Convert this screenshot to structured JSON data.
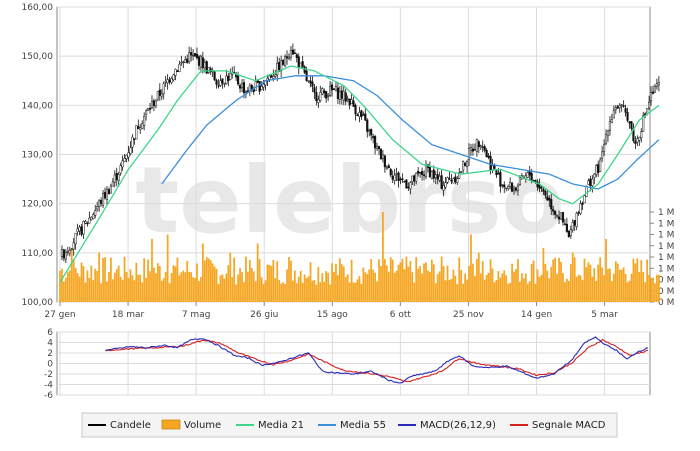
{
  "chart_data": [
    {
      "type": "candlestick",
      "panel": "price",
      "watermark": "telebrso",
      "y_ticks": [
        "160,00",
        "150,00",
        "140,00",
        "130,00",
        "120,00",
        "110,00",
        "100,00"
      ],
      "y_tick_values": [
        160,
        150,
        140,
        130,
        120,
        110,
        100
      ],
      "ylim": [
        100,
        160
      ],
      "volume_ticks": [
        "1 M",
        "1 M",
        "1 M",
        "1 M",
        "1 M",
        "1 M",
        "0 M",
        "0 M",
        "0 M"
      ],
      "x_ticks": [
        "27 gen",
        "18 mar",
        "7 mag",
        "26 giu",
        "15 ago",
        "6 ott",
        "25 nov",
        "14 gen",
        "5 mar"
      ],
      "x_tick_positions": [
        0,
        35,
        70,
        105,
        140,
        175,
        210,
        245,
        280
      ],
      "n_days": 296,
      "price_anchors": [
        [
          0,
          109
        ],
        [
          6,
          112
        ],
        [
          15,
          117
        ],
        [
          25,
          123
        ],
        [
          32,
          128
        ],
        [
          40,
          136
        ],
        [
          45,
          139
        ],
        [
          52,
          143
        ],
        [
          58,
          147
        ],
        [
          66,
          150
        ],
        [
          72,
          149
        ],
        [
          80,
          145
        ],
        [
          88,
          146
        ],
        [
          95,
          143
        ],
        [
          102,
          144
        ],
        [
          110,
          147
        ],
        [
          115,
          149
        ],
        [
          118,
          152
        ],
        [
          125,
          146
        ],
        [
          130,
          142
        ],
        [
          140,
          143
        ],
        [
          148,
          141
        ],
        [
          155,
          137
        ],
        [
          162,
          131
        ],
        [
          170,
          126
        ],
        [
          178,
          124
        ],
        [
          188,
          127
        ],
        [
          195,
          124
        ],
        [
          204,
          126
        ],
        [
          210,
          131
        ],
        [
          215,
          133
        ],
        [
          220,
          128
        ],
        [
          226,
          124
        ],
        [
          232,
          123
        ],
        [
          240,
          126
        ],
        [
          248,
          122
        ],
        [
          252,
          119
        ],
        [
          256,
          117
        ],
        [
          260,
          113
        ],
        [
          264,
          118
        ],
        [
          270,
          124
        ],
        [
          276,
          128
        ],
        [
          280,
          136
        ],
        [
          284,
          140
        ],
        [
          290,
          138
        ],
        [
          294,
          132
        ],
        [
          298,
          137
        ],
        [
          302,
          142
        ],
        [
          306,
          144
        ]
      ],
      "ma21_anchors": [
        [
          0,
          104
        ],
        [
          20,
          117
        ],
        [
          35,
          127
        ],
        [
          50,
          135
        ],
        [
          60,
          141
        ],
        [
          72,
          147
        ],
        [
          85,
          147
        ],
        [
          100,
          145
        ],
        [
          118,
          148
        ],
        [
          130,
          147
        ],
        [
          145,
          144
        ],
        [
          155,
          140
        ],
        [
          170,
          133
        ],
        [
          185,
          128
        ],
        [
          205,
          126
        ],
        [
          225,
          127
        ],
        [
          245,
          124
        ],
        [
          255,
          121
        ],
        [
          262,
          120
        ],
        [
          275,
          124
        ],
        [
          285,
          130
        ],
        [
          296,
          137
        ],
        [
          306,
          140
        ]
      ],
      "ma55_anchors": [
        [
          52,
          124
        ],
        [
          65,
          131
        ],
        [
          75,
          136
        ],
        [
          90,
          141
        ],
        [
          105,
          145
        ],
        [
          120,
          146
        ],
        [
          135,
          146
        ],
        [
          150,
          145
        ],
        [
          162,
          142
        ],
        [
          175,
          137
        ],
        [
          190,
          132
        ],
        [
          205,
          130
        ],
        [
          220,
          128
        ],
        [
          235,
          127
        ],
        [
          250,
          126
        ],
        [
          262,
          124
        ],
        [
          275,
          123
        ],
        [
          285,
          125
        ],
        [
          295,
          129
        ],
        [
          306,
          133
        ]
      ],
      "volume_base": 0.35,
      "volume_spikes": [
        [
          6,
          0.6
        ],
        [
          20,
          0.55
        ],
        [
          47,
          0.7
        ],
        [
          55,
          0.75
        ],
        [
          73,
          0.65
        ],
        [
          87,
          0.55
        ],
        [
          101,
          0.65
        ],
        [
          117,
          0.5
        ],
        [
          165,
          1.0
        ],
        [
          210,
          0.75
        ],
        [
          214,
          0.55
        ],
        [
          247,
          0.6
        ],
        [
          262,
          0.55
        ],
        [
          279,
          0.7
        ]
      ]
    },
    {
      "type": "line",
      "panel": "macd",
      "y_ticks": [
        "6",
        "4",
        "2",
        "0",
        "-2",
        "-4",
        "-6"
      ],
      "y_tick_values": [
        6,
        4,
        2,
        0,
        -2,
        -4,
        -6
      ],
      "ylim": [
        -6,
        6
      ],
      "series": [
        {
          "name": "MACD(26,12,9)",
          "color": "#2a2ab8",
          "anchors": [
            [
              26,
              2.5
            ],
            [
              40,
              3.2
            ],
            [
              50,
              3.0
            ],
            [
              60,
              3.5
            ],
            [
              67,
              3.0
            ],
            [
              75,
              4.5
            ],
            [
              82,
              4.8
            ],
            [
              90,
              3.5
            ],
            [
              100,
              1.5
            ],
            [
              108,
              1.0
            ],
            [
              115,
              -0.3
            ],
            [
              125,
              0.2
            ],
            [
              132,
              1.0
            ],
            [
              142,
              2.0
            ],
            [
              150,
              -1.5
            ],
            [
              158,
              -1.8
            ],
            [
              168,
              -2.0
            ],
            [
              178,
              -1.5
            ],
            [
              188,
              -3.2
            ],
            [
              195,
              -3.8
            ],
            [
              200,
              -2.5
            ],
            [
              207,
              -2.0
            ],
            [
              214,
              -1.5
            ],
            [
              222,
              0.5
            ],
            [
              228,
              1.5
            ],
            [
              236,
              -0.5
            ],
            [
              245,
              -0.8
            ],
            [
              255,
              -0.5
            ],
            [
              265,
              -1.8
            ],
            [
              272,
              -2.8
            ],
            [
              282,
              -2.0
            ],
            [
              292,
              0.5
            ],
            [
              300,
              4.0
            ],
            [
              306,
              5.0
            ],
            [
              312,
              3.5
            ],
            [
              318,
              2.5
            ],
            [
              324,
              0.8
            ],
            [
              330,
              2.2
            ],
            [
              336,
              3.0
            ]
          ]
        },
        {
          "name": "Segnale MACD",
          "color": "#d62020",
          "anchors": [
            [
              26,
              2.5
            ],
            [
              40,
              2.8
            ],
            [
              55,
              3.0
            ],
            [
              70,
              3.3
            ],
            [
              82,
              4.5
            ],
            [
              92,
              3.8
            ],
            [
              102,
              2.0
            ],
            [
              112,
              0.8
            ],
            [
              122,
              -0.2
            ],
            [
              132,
              0.6
            ],
            [
              142,
              1.8
            ],
            [
              152,
              0.2
            ],
            [
              162,
              -1.3
            ],
            [
              175,
              -1.8
            ],
            [
              188,
              -2.5
            ],
            [
              198,
              -3.5
            ],
            [
              208,
              -2.6
            ],
            [
              218,
              -1.5
            ],
            [
              228,
              1.0
            ],
            [
              238,
              0.0
            ],
            [
              250,
              -0.5
            ],
            [
              262,
              -1.0
            ],
            [
              272,
              -2.2
            ],
            [
              282,
              -1.8
            ],
            [
              292,
              0.0
            ],
            [
              302,
              3.0
            ],
            [
              310,
              4.5
            ],
            [
              318,
              3.2
            ],
            [
              326,
              1.5
            ],
            [
              336,
              2.5
            ]
          ]
        }
      ]
    }
  ],
  "legend": {
    "items": [
      {
        "label": "Candele",
        "color": "#000000",
        "kind": "line"
      },
      {
        "label": "Volume",
        "color": "#f5a623",
        "kind": "box"
      },
      {
        "label": "Media 21",
        "color": "#3dd68c",
        "kind": "line"
      },
      {
        "label": "Media 55",
        "color": "#3c8fdd",
        "kind": "line"
      },
      {
        "label": "MACD(26,12,9)",
        "color": "#2a2ab8",
        "kind": "line"
      },
      {
        "label": "Segnale MACD",
        "color": "#d62020",
        "kind": "line"
      }
    ]
  },
  "colors": {
    "up_candle": "#ffffff",
    "down_candle": "#111111",
    "volume": "#f5a623",
    "grid": "#dcdcdc",
    "axis": "#888888",
    "watermark": "#e8e8e8"
  }
}
